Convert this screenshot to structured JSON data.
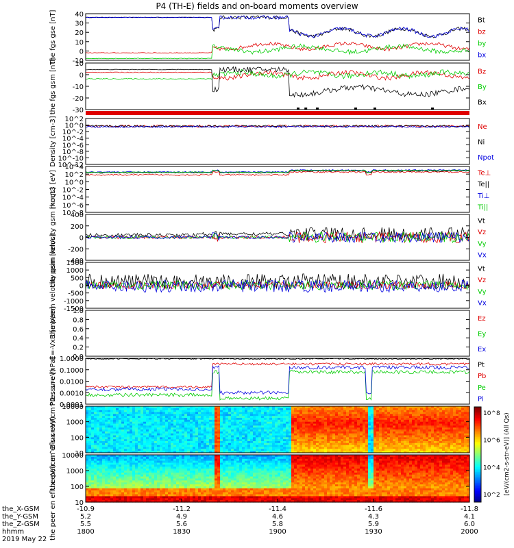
{
  "title": "P4 (TH-E) fields and on-board moments overview",
  "colors": {
    "black": "#000000",
    "red": "#e00000",
    "green": "#00cc00",
    "blue": "#0000e0"
  },
  "chart_data": [
    {
      "type": "line",
      "ylabel": "the fgs gse [nT]",
      "yticks": [
        "40",
        "30",
        "20",
        "10",
        "0",
        "-10"
      ],
      "ylim": [
        -10,
        40
      ],
      "series": [
        {
          "name": "Bt",
          "color": "#000000"
        },
        {
          "name": "bz",
          "color": "#e00000"
        },
        {
          "name": "by",
          "color": "#00cc00"
        },
        {
          "name": "bx",
          "color": "#0000e0"
        }
      ]
    },
    {
      "type": "line",
      "ylabel": "the fgs gsm [nT]",
      "yticks": [
        "10",
        "0",
        "-10",
        "-20",
        "-30"
      ],
      "ylim": [
        -35,
        15
      ],
      "series": [
        {
          "name": "Bz",
          "color": "#e00000"
        },
        {
          "name": "By",
          "color": "#00cc00"
        },
        {
          "name": "Bx",
          "color": "#000000"
        }
      ]
    },
    {
      "type": "line",
      "ylabel": "Density [cm-3]",
      "yticks": [
        "10^2",
        "10^0",
        "10^-2",
        "10^-4",
        "10^-6",
        "10^-8",
        "10^-10",
        "10^-12"
      ],
      "scale": "log",
      "series": [
        {
          "name": "Ne",
          "color": "#e00000"
        },
        {
          "name": "Ni",
          "color": "#000000"
        },
        {
          "name": "Npot",
          "color": "#0000e0"
        }
      ]
    },
    {
      "type": "line",
      "ylabel": "moqt3 [eV]",
      "yticks": [
        "10^4",
        "10^2",
        "10^0",
        "10^-2",
        "10^-4",
        "10^-6",
        "10^-8"
      ],
      "scale": "log",
      "series": [
        {
          "name": "Te⊥",
          "color": "#e00000"
        },
        {
          "name": "Te||",
          "color": "#000000"
        },
        {
          "name": "Ti⊥",
          "color": "#0000e0"
        },
        {
          "name": "Ti||",
          "color": "#00cc00"
        }
      ]
    },
    {
      "type": "line",
      "ylabel": "the peim velocity gsm [km/s]",
      "yticks": [
        "400",
        "200",
        "0",
        "-200",
        "-400"
      ],
      "ylim": [
        -400,
        400
      ],
      "series": [
        {
          "name": "Vt",
          "color": "#000000"
        },
        {
          "name": "Vz",
          "color": "#e00000"
        },
        {
          "name": "Vy",
          "color": "#00cc00"
        },
        {
          "name": "Vx",
          "color": "#0000e0"
        }
      ]
    },
    {
      "type": "line",
      "ylabel": "the peem velocity gsm [km/s]",
      "yticks": [
        "1500",
        "1000",
        "500",
        "0",
        "-500",
        "-1000",
        "-1500"
      ],
      "ylim": [
        -1500,
        1500
      ],
      "series": [
        {
          "name": "Vt",
          "color": "#000000"
        },
        {
          "name": "Vz",
          "color": "#e00000"
        },
        {
          "name": "Vy",
          "color": "#00cc00"
        },
        {
          "name": "Vx",
          "color": "#0000e0"
        }
      ]
    },
    {
      "type": "line",
      "ylabel": "E=-VxB [mV/m]",
      "yticks": [
        "1.0",
        "0.8",
        "0.6",
        "0.4",
        "0.2",
        "0.0"
      ],
      "ylim": [
        0,
        1
      ],
      "series": [
        {
          "name": "Ez",
          "color": "#e00000"
        },
        {
          "name": "Ey",
          "color": "#00cc00"
        },
        {
          "name": "Ex",
          "color": "#0000e0"
        }
      ]
    },
    {
      "type": "line",
      "ylabel": "Pressure [nPa]",
      "yticks": [
        "1.0000",
        "0.1000",
        "0.0100",
        "0.0010",
        "0.0001"
      ],
      "scale": "log",
      "series": [
        {
          "name": "Pt",
          "color": "#000000"
        },
        {
          "name": "Pb",
          "color": "#e00000"
        },
        {
          "name": "Pe",
          "color": "#00cc00"
        },
        {
          "name": "Pi",
          "color": "#0000e0"
        }
      ]
    },
    {
      "type": "heatmap",
      "ylabel": "the peir en eflux eV/(cm^2-s-sr-eV)",
      "yticks": [
        "10000",
        "1000",
        "100",
        "10"
      ],
      "scale": "log"
    },
    {
      "type": "heatmap",
      "ylabel": "the peer en eflux eV/(cm^2-s-sr-eV)",
      "yticks": [
        "10000",
        "1000",
        "100",
        "10"
      ],
      "scale": "log"
    }
  ],
  "colorbar": {
    "label": "[eV/(cm2-s-str-eV)]  (All Qs)",
    "ticks": [
      "10^8",
      "10^6",
      "10^4",
      "10^2"
    ]
  },
  "xaxis": {
    "rows": [
      "the_X-GSM",
      "the_Y-GSM",
      "the_Z-GSM",
      "hhmm"
    ],
    "ticks": [
      [
        "-10.9",
        "5.2",
        "5.5",
        "1800"
      ],
      [
        "-11.2",
        "4.9",
        "5.6",
        "1830"
      ],
      [
        "-11.4",
        "4.6",
        "5.8",
        "1900"
      ],
      [
        "-11.6",
        "4.3",
        "5.9",
        "1930"
      ],
      [
        "-11.8",
        "4.1",
        "6.0",
        "2000"
      ]
    ],
    "date": "2019 May 22"
  }
}
